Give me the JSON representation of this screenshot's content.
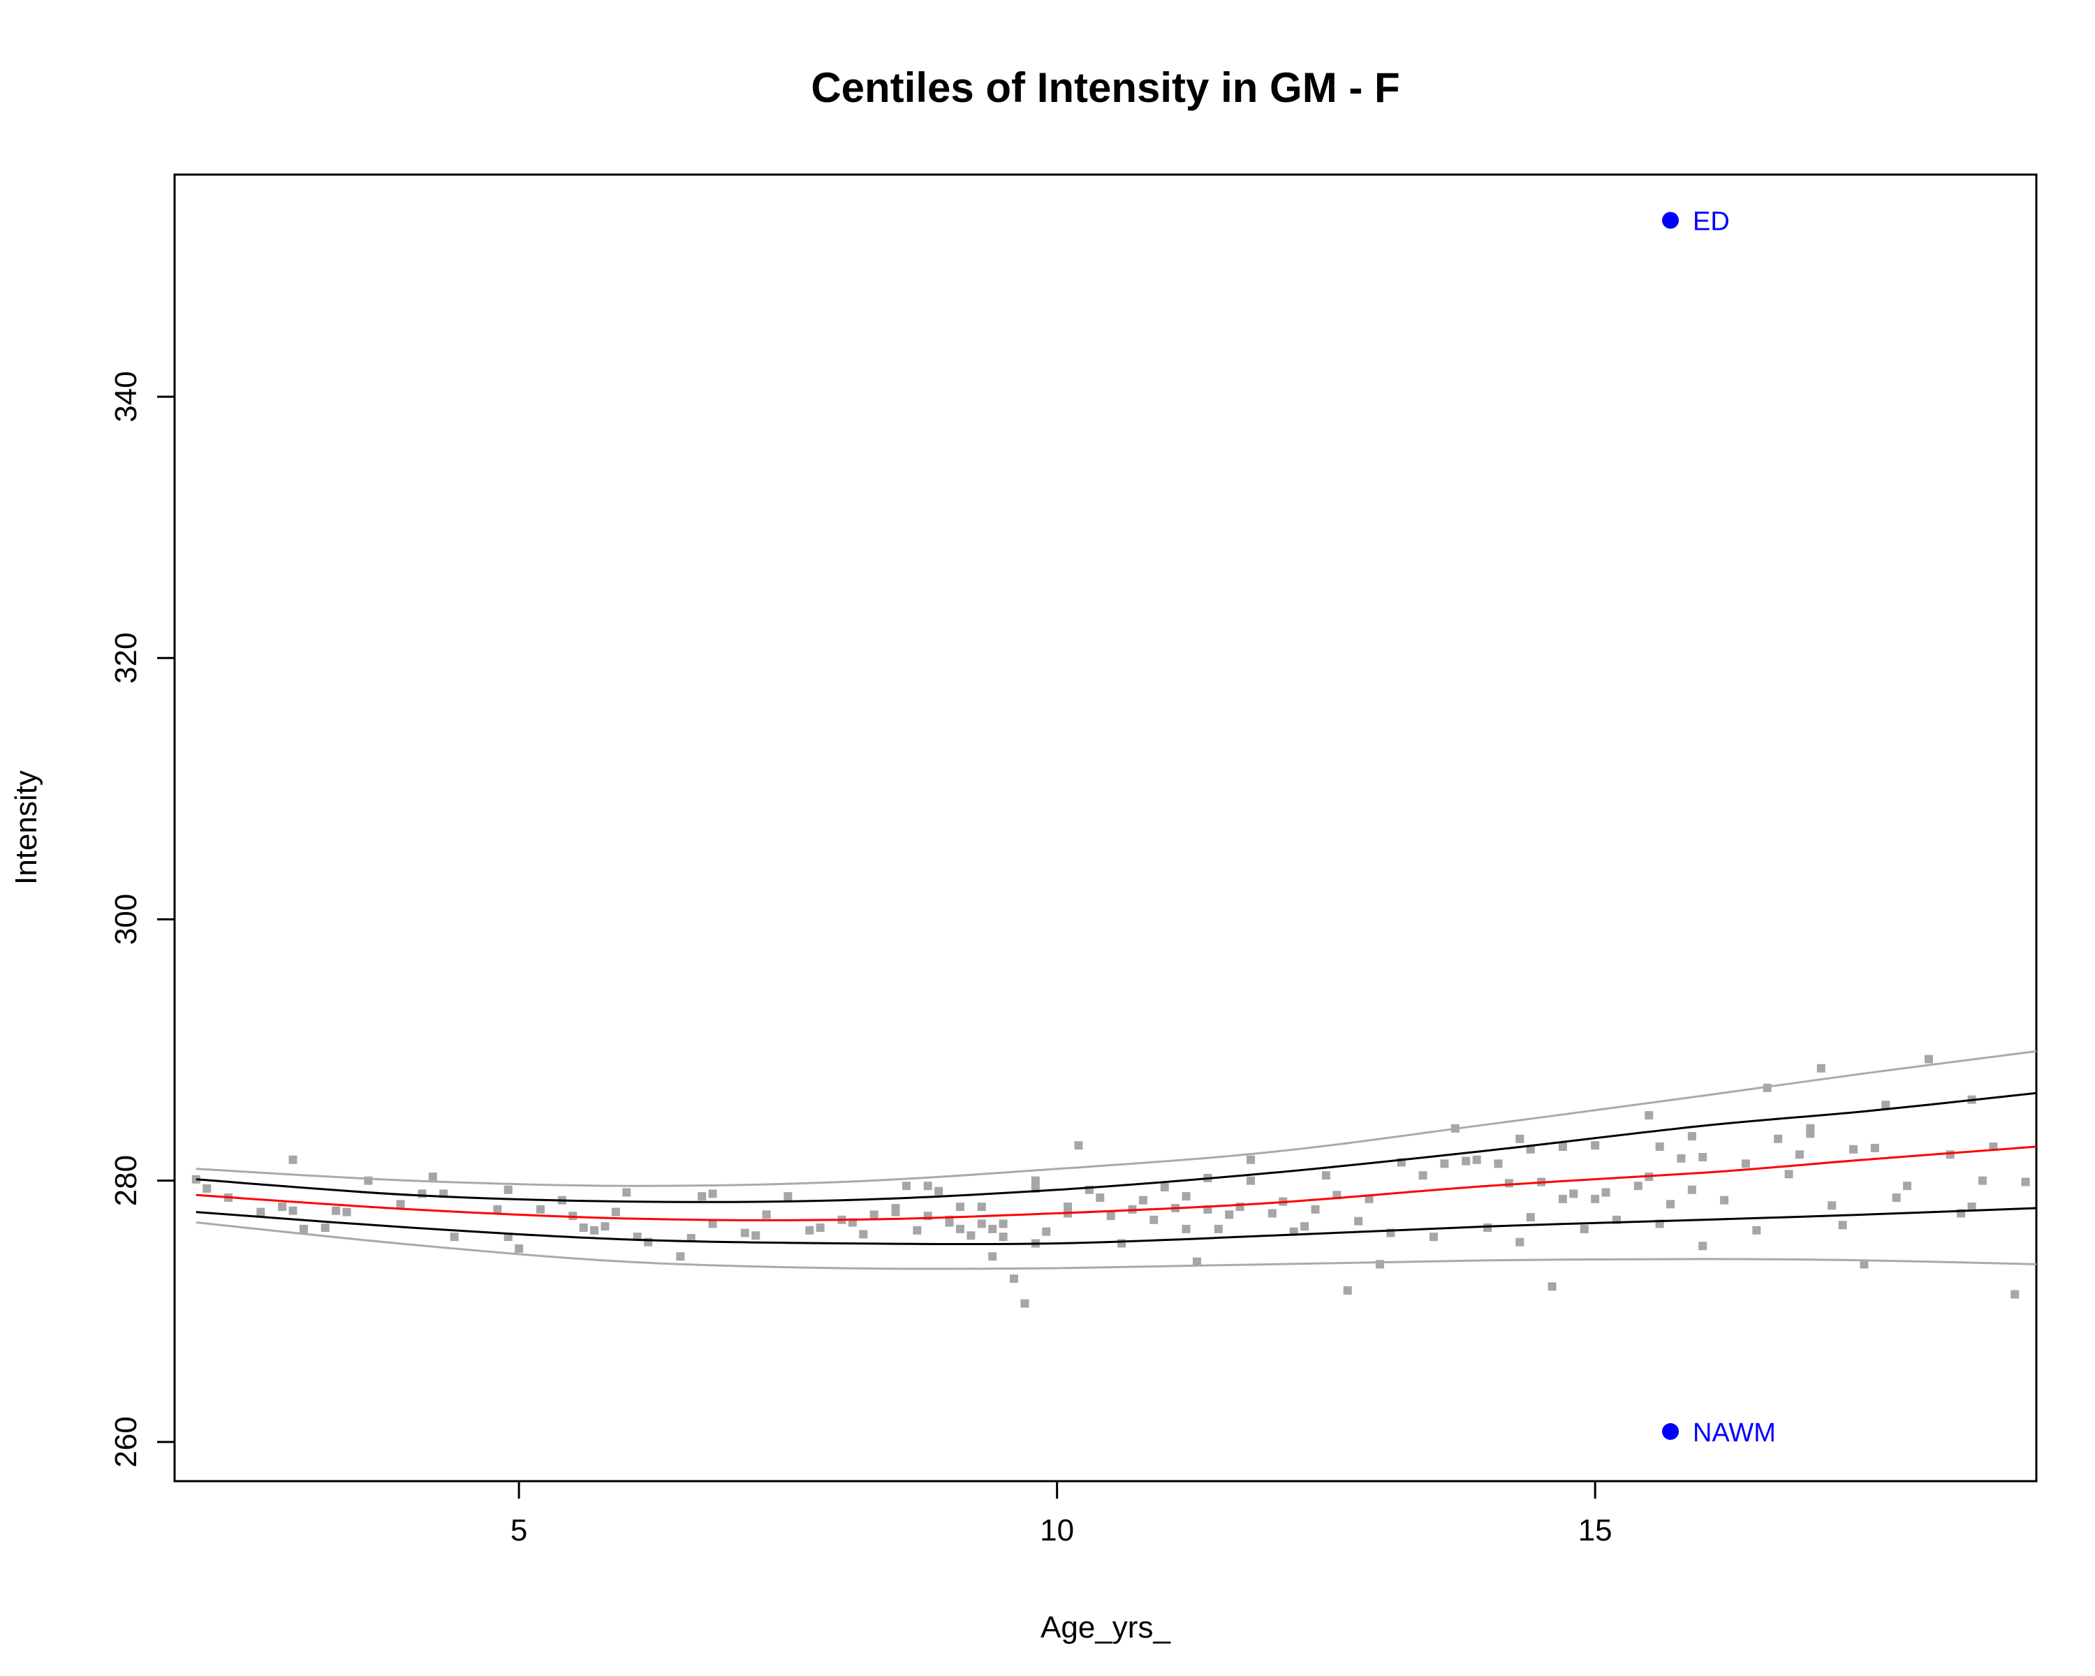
{
  "chart_data": {
    "type": "scatter",
    "title": "Centiles of Intensity in GM - F",
    "xlabel": "Age_yrs_",
    "ylabel": "Intensity",
    "xlim": [
      1.8,
      19.1
    ],
    "ylim": [
      257,
      357
    ],
    "xticks": [
      5,
      10,
      15
    ],
    "yticks": [
      260,
      280,
      300,
      320,
      340
    ],
    "grid": false,
    "point_color": "#a6a6a6",
    "points": [
      [
        2.0,
        280.1
      ],
      [
        2.1,
        279.4
      ],
      [
        2.3,
        278.7
      ],
      [
        2.6,
        277.6
      ],
      [
        2.8,
        278.0
      ],
      [
        2.9,
        277.7
      ],
      [
        2.9,
        281.6
      ],
      [
        3.0,
        276.3
      ],
      [
        3.2,
        276.4
      ],
      [
        3.3,
        277.7
      ],
      [
        3.4,
        277.6
      ],
      [
        3.6,
        280.0
      ],
      [
        3.9,
        278.2
      ],
      [
        4.1,
        279.0
      ],
      [
        4.2,
        280.3
      ],
      [
        4.3,
        279.0
      ],
      [
        4.4,
        275.7
      ],
      [
        4.8,
        277.8
      ],
      [
        4.9,
        275.7
      ],
      [
        4.9,
        279.3
      ],
      [
        5.0,
        274.8
      ],
      [
        5.2,
        277.8
      ],
      [
        5.4,
        278.5
      ],
      [
        5.5,
        277.3
      ],
      [
        5.6,
        276.4
      ],
      [
        5.7,
        276.2
      ],
      [
        5.8,
        276.5
      ],
      [
        5.9,
        277.6
      ],
      [
        6.0,
        279.1
      ],
      [
        6.1,
        275.7
      ],
      [
        6.2,
        275.3
      ],
      [
        6.5,
        274.2
      ],
      [
        6.6,
        275.6
      ],
      [
        6.7,
        278.8
      ],
      [
        6.8,
        276.7
      ],
      [
        6.8,
        279.0
      ],
      [
        7.1,
        276.0
      ],
      [
        7.2,
        275.8
      ],
      [
        7.3,
        277.4
      ],
      [
        7.5,
        278.8
      ],
      [
        7.7,
        276.2
      ],
      [
        7.8,
        276.4
      ],
      [
        8.0,
        277.0
      ],
      [
        8.1,
        276.8
      ],
      [
        8.2,
        275.9
      ],
      [
        8.3,
        277.4
      ],
      [
        8.5,
        277.9
      ],
      [
        8.5,
        277.6
      ],
      [
        8.6,
        279.6
      ],
      [
        8.7,
        276.2
      ],
      [
        8.8,
        277.3
      ],
      [
        8.8,
        279.6
      ],
      [
        8.9,
        279.2
      ],
      [
        9.0,
        276.8
      ],
      [
        9.0,
        277.0
      ],
      [
        9.1,
        278.0
      ],
      [
        9.1,
        276.3
      ],
      [
        9.2,
        275.8
      ],
      [
        9.3,
        278.0
      ],
      [
        9.3,
        276.7
      ],
      [
        9.4,
        274.2
      ],
      [
        9.4,
        276.3
      ],
      [
        9.5,
        275.7
      ],
      [
        9.5,
        276.7
      ],
      [
        9.6,
        272.5
      ],
      [
        9.7,
        270.6
      ],
      [
        9.8,
        275.2
      ],
      [
        9.8,
        279.4
      ],
      [
        9.8,
        280.0
      ],
      [
        9.9,
        276.1
      ],
      [
        10.1,
        278.0
      ],
      [
        10.1,
        277.5
      ],
      [
        10.2,
        282.7
      ],
      [
        10.3,
        279.3
      ],
      [
        10.4,
        278.7
      ],
      [
        10.5,
        277.3
      ],
      [
        10.6,
        275.2
      ],
      [
        10.7,
        277.8
      ],
      [
        10.8,
        278.5
      ],
      [
        10.9,
        277.0
      ],
      [
        11.0,
        279.5
      ],
      [
        11.1,
        277.9
      ],
      [
        11.2,
        276.3
      ],
      [
        11.2,
        278.8
      ],
      [
        11.3,
        273.8
      ],
      [
        11.4,
        277.8
      ],
      [
        11.4,
        280.2
      ],
      [
        11.5,
        276.3
      ],
      [
        11.6,
        277.4
      ],
      [
        11.7,
        278.0
      ],
      [
        11.8,
        281.6
      ],
      [
        11.8,
        280.0
      ],
      [
        12.0,
        277.5
      ],
      [
        12.1,
        278.4
      ],
      [
        12.2,
        276.1
      ],
      [
        12.3,
        276.5
      ],
      [
        12.4,
        277.8
      ],
      [
        12.5,
        280.4
      ],
      [
        12.6,
        278.9
      ],
      [
        12.7,
        271.6
      ],
      [
        12.8,
        276.9
      ],
      [
        12.9,
        278.6
      ],
      [
        13.0,
        273.6
      ],
      [
        13.1,
        276.0
      ],
      [
        13.2,
        281.4
      ],
      [
        13.4,
        280.4
      ],
      [
        13.5,
        275.7
      ],
      [
        13.6,
        281.3
      ],
      [
        13.7,
        284.0
      ],
      [
        13.8,
        281.5
      ],
      [
        13.9,
        281.6
      ],
      [
        14.0,
        276.4
      ],
      [
        14.1,
        281.3
      ],
      [
        14.2,
        279.8
      ],
      [
        14.3,
        275.3
      ],
      [
        14.3,
        283.2
      ],
      [
        14.4,
        282.4
      ],
      [
        14.4,
        277.2
      ],
      [
        14.5,
        279.9
      ],
      [
        14.6,
        271.9
      ],
      [
        14.7,
        282.6
      ],
      [
        14.7,
        278.6
      ],
      [
        14.8,
        279.0
      ],
      [
        14.9,
        276.3
      ],
      [
        15.0,
        278.6
      ],
      [
        15.0,
        282.7
      ],
      [
        15.1,
        279.1
      ],
      [
        15.2,
        277.0
      ],
      [
        15.4,
        279.6
      ],
      [
        15.5,
        280.3
      ],
      [
        15.5,
        285.0
      ],
      [
        15.6,
        276.7
      ],
      [
        15.6,
        282.6
      ],
      [
        15.7,
        278.2
      ],
      [
        15.8,
        281.7
      ],
      [
        15.9,
        279.3
      ],
      [
        15.9,
        283.4
      ],
      [
        16.0,
        275.0
      ],
      [
        16.0,
        281.8
      ],
      [
        16.2,
        278.5
      ],
      [
        16.4,
        281.3
      ],
      [
        16.5,
        276.2
      ],
      [
        16.6,
        287.1
      ],
      [
        16.7,
        283.2
      ],
      [
        16.8,
        280.5
      ],
      [
        16.9,
        282.0
      ],
      [
        17.0,
        283.6
      ],
      [
        17.0,
        284.0
      ],
      [
        17.1,
        288.6
      ],
      [
        17.2,
        278.1
      ],
      [
        17.3,
        276.6
      ],
      [
        17.4,
        282.4
      ],
      [
        17.5,
        273.6
      ],
      [
        17.6,
        282.5
      ],
      [
        17.7,
        285.8
      ],
      [
        17.8,
        278.7
      ],
      [
        17.9,
        279.6
      ],
      [
        18.1,
        289.3
      ],
      [
        18.3,
        282.0
      ],
      [
        18.4,
        277.5
      ],
      [
        18.5,
        278.0
      ],
      [
        18.5,
        286.2
      ],
      [
        18.6,
        280.0
      ],
      [
        18.7,
        282.6
      ],
      [
        18.9,
        271.3
      ],
      [
        19.0,
        279.9
      ]
    ],
    "centile_curves": [
      {
        "color": "#aaaaaa",
        "x": [
          2.0,
          4,
          6,
          8,
          10,
          12,
          14,
          16,
          17.5,
          19.1
        ],
        "y": [
          280.9,
          280.0,
          279.6,
          279.9,
          280.9,
          282.2,
          284.3,
          286.5,
          288.2,
          289.9
        ]
      },
      {
        "color": "#000000",
        "x": [
          2.0,
          4,
          6,
          8,
          10,
          12,
          14,
          16,
          17.5,
          19.1
        ],
        "y": [
          280.1,
          278.9,
          278.4,
          278.5,
          279.3,
          280.6,
          282.3,
          284.2,
          285.3,
          286.7
        ]
      },
      {
        "color": "#ff0000",
        "x": [
          2.0,
          4,
          6,
          8,
          10,
          12,
          14,
          16,
          17.5,
          19.1
        ],
        "y": [
          278.9,
          277.8,
          277.1,
          277.0,
          277.5,
          278.3,
          279.6,
          280.6,
          281.6,
          282.6
        ]
      },
      {
        "color": "#000000",
        "x": [
          2.0,
          4,
          6,
          8,
          10,
          12,
          14,
          16,
          17.5,
          19.1
        ],
        "y": [
          277.6,
          276.4,
          275.5,
          275.2,
          275.2,
          275.8,
          276.5,
          277.0,
          277.4,
          277.9
        ]
      },
      {
        "color": "#aaaaaa",
        "x": [
          2.0,
          4,
          6,
          8,
          10,
          12,
          14,
          16,
          17.5,
          19.1
        ],
        "y": [
          276.8,
          275.1,
          273.8,
          273.3,
          273.3,
          273.6,
          273.9,
          274.0,
          273.9,
          273.6
        ]
      }
    ],
    "markers": [
      {
        "label": "ED",
        "x": 15.7,
        "y": 353.5,
        "color": "#0000ff"
      },
      {
        "label": "NAWM",
        "x": 15.7,
        "y": 260.8,
        "color": "#0000ff"
      }
    ]
  }
}
